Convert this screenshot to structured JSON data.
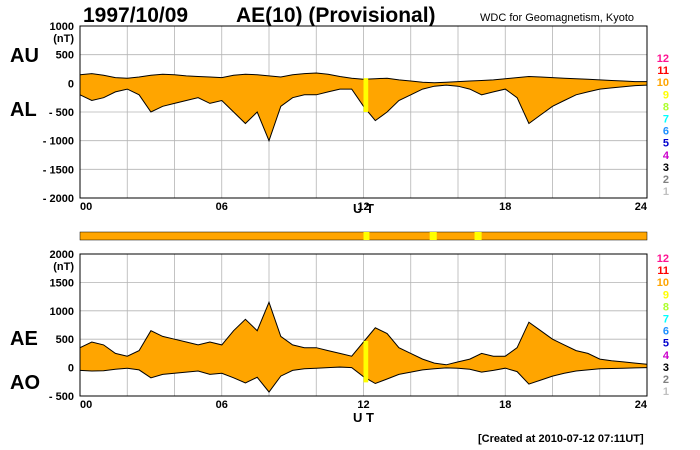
{
  "header": {
    "date": "1997/10/09",
    "title": "AE(10) (Provisional)",
    "source": "WDC for Geomagnetism, Kyoto"
  },
  "footer": "[Created at 2010-07-12 07:11UT]",
  "colors": {
    "fill": "#ffa500",
    "line": "#000000",
    "grid": "#b4b4b4",
    "highlight": "#ffff00"
  },
  "level_legend": [
    {
      "label": "12",
      "color": "#ff1493"
    },
    {
      "label": "11",
      "color": "#ff0000"
    },
    {
      "label": "10",
      "color": "#ffa500"
    },
    {
      "label": "9",
      "color": "#ffff00"
    },
    {
      "label": "8",
      "color": "#adff2f"
    },
    {
      "label": "7",
      "color": "#00ffff"
    },
    {
      "label": "6",
      "color": "#1e90ff"
    },
    {
      "label": "5",
      "color": "#0000cd"
    },
    {
      "label": "4",
      "color": "#cc00cc"
    },
    {
      "label": "3",
      "color": "#000000"
    },
    {
      "label": "2",
      "color": "#808080"
    },
    {
      "label": "1",
      "color": "#c0c0c0"
    }
  ],
  "status_bar": {
    "base_color": "#ffa500",
    "segments": [
      {
        "from": 12.0,
        "to": 12.25,
        "color": "#ffff00"
      },
      {
        "from": 14.8,
        "to": 15.1,
        "color": "#ffff00"
      },
      {
        "from": 16.7,
        "to": 17.0,
        "color": "#ffff00"
      }
    ]
  },
  "chart_data": [
    {
      "type": "area",
      "title": "AU / AL",
      "xlabel": "U T",
      "unit": "(nT)",
      "xlim": [
        0,
        24
      ],
      "ylim": [
        -2000,
        1000
      ],
      "x_ticks": [
        "00",
        "06",
        "12",
        "18",
        "24"
      ],
      "x_tick_values": [
        0,
        6,
        12,
        18,
        24
      ],
      "y_ticks": [
        {
          "value": 1000,
          "label": "1000"
        },
        {
          "value": 500,
          "label": "500"
        },
        {
          "value": 0,
          "label": "0"
        },
        {
          "value": -500,
          "label": "- 500"
        },
        {
          "value": -1000,
          "label": "- 1000"
        },
        {
          "value": -1500,
          "label": "- 1500"
        },
        {
          "value": -2000,
          "label": "- 2000"
        }
      ],
      "upper_label": "AU",
      "lower_label": "AL",
      "x": [
        0,
        0.5,
        1,
        1.5,
        2,
        2.5,
        3,
        3.5,
        4,
        4.5,
        5,
        5.5,
        6,
        6.5,
        7,
        7.5,
        8,
        8.5,
        9,
        9.5,
        10,
        10.5,
        11,
        11.5,
        12,
        12.5,
        13,
        13.5,
        14,
        14.5,
        15,
        15.5,
        16,
        16.5,
        17,
        17.5,
        18,
        18.5,
        19,
        19.5,
        20,
        20.5,
        21,
        21.5,
        22,
        22.5,
        23,
        23.5,
        24
      ],
      "series": [
        {
          "name": "AU",
          "values": [
            150,
            170,
            140,
            100,
            90,
            110,
            140,
            160,
            150,
            130,
            120,
            110,
            100,
            140,
            160,
            150,
            130,
            110,
            150,
            170,
            180,
            160,
            120,
            90,
            70,
            80,
            90,
            60,
            40,
            20,
            10,
            20,
            30,
            40,
            50,
            60,
            80,
            100,
            120,
            110,
            100,
            90,
            80,
            70,
            60,
            50,
            40,
            30,
            30
          ]
        },
        {
          "name": "AL",
          "values": [
            -200,
            -300,
            -250,
            -150,
            -100,
            -200,
            -500,
            -400,
            -350,
            -300,
            -250,
            -350,
            -300,
            -500,
            -700,
            -500,
            -1000,
            -400,
            -250,
            -200,
            -200,
            -150,
            -100,
            -100,
            -400,
            -650,
            -500,
            -300,
            -200,
            -100,
            -50,
            -30,
            -50,
            -100,
            -200,
            -150,
            -100,
            -250,
            -700,
            -550,
            -400,
            -300,
            -200,
            -150,
            -100,
            -80,
            -60,
            -40,
            -30
          ]
        }
      ]
    },
    {
      "type": "area",
      "title": "AE / AO",
      "xlabel": "U T",
      "unit": "(nT)",
      "xlim": [
        0,
        24
      ],
      "ylim": [
        -500,
        2000
      ],
      "x_ticks": [
        "00",
        "06",
        "12",
        "18",
        "24"
      ],
      "x_tick_values": [
        0,
        6,
        12,
        18,
        24
      ],
      "y_ticks": [
        {
          "value": 2000,
          "label": "2000"
        },
        {
          "value": 1500,
          "label": "1500"
        },
        {
          "value": 1000,
          "label": "1000"
        },
        {
          "value": 500,
          "label": "500"
        },
        {
          "value": 0,
          "label": "0"
        },
        {
          "value": -500,
          "label": "- 500"
        }
      ],
      "upper_label": "AE",
      "lower_label": "AO",
      "x": [
        0,
        0.5,
        1,
        1.5,
        2,
        2.5,
        3,
        3.5,
        4,
        4.5,
        5,
        5.5,
        6,
        6.5,
        7,
        7.5,
        8,
        8.5,
        9,
        9.5,
        10,
        10.5,
        11,
        11.5,
        12,
        12.5,
        13,
        13.5,
        14,
        14.5,
        15,
        15.5,
        16,
        16.5,
        17,
        17.5,
        18,
        18.5,
        19,
        19.5,
        20,
        20.5,
        21,
        21.5,
        22,
        22.5,
        23,
        23.5,
        24
      ],
      "series": [
        {
          "name": "AE",
          "values": [
            350,
            450,
            400,
            250,
            200,
            300,
            650,
            550,
            500,
            450,
            400,
            450,
            400,
            650,
            850,
            650,
            1150,
            550,
            400,
            350,
            350,
            300,
            250,
            200,
            450,
            700,
            600,
            350,
            250,
            150,
            80,
            50,
            100,
            150,
            250,
            200,
            200,
            350,
            800,
            650,
            500,
            400,
            300,
            250,
            150,
            120,
            100,
            80,
            60
          ]
        },
        {
          "name": "AO",
          "values": [
            -50,
            -60,
            -55,
            -30,
            -10,
            -40,
            -180,
            -120,
            -100,
            -80,
            -60,
            -120,
            -100,
            -180,
            -270,
            -170,
            -430,
            -150,
            -50,
            -20,
            -10,
            0,
            10,
            0,
            -160,
            -280,
            -200,
            -120,
            -80,
            -40,
            -20,
            -5,
            -10,
            -30,
            -80,
            -50,
            -10,
            -70,
            -290,
            -220,
            -150,
            -100,
            -60,
            -40,
            -20,
            -15,
            -10,
            -5,
            0
          ]
        }
      ]
    }
  ]
}
